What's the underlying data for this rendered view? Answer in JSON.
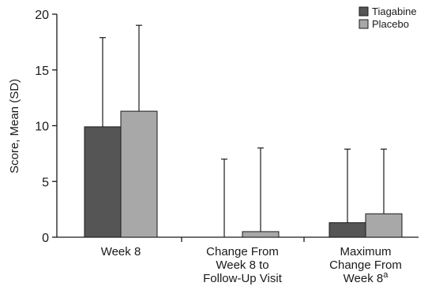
{
  "chart_data": {
    "type": "bar",
    "title": "",
    "xlabel": "",
    "ylabel": "Score, Mean (SD)",
    "ylim": [
      0,
      20
    ],
    "yticks": [
      0,
      5,
      10,
      15,
      20
    ],
    "grid": false,
    "legend_position": "top-right",
    "categories": [
      {
        "lines": [
          "Week 8"
        ],
        "superscript": ""
      },
      {
        "lines": [
          "Change From",
          "Week 8 to",
          "Follow-Up Visit"
        ],
        "superscript": ""
      },
      {
        "lines": [
          "Maximum",
          "Change From",
          "Week 8"
        ],
        "superscript": "a"
      }
    ],
    "series": [
      {
        "name": "Tiagabine",
        "color": "#555555",
        "values": [
          9.9,
          0.0,
          1.3
        ],
        "sd": [
          8.0,
          7.0,
          6.6
        ]
      },
      {
        "name": "Placebo",
        "color": "#a8a8a8",
        "values": [
          11.3,
          0.5,
          2.1
        ],
        "sd": [
          7.7,
          7.5,
          5.8
        ]
      }
    ]
  }
}
